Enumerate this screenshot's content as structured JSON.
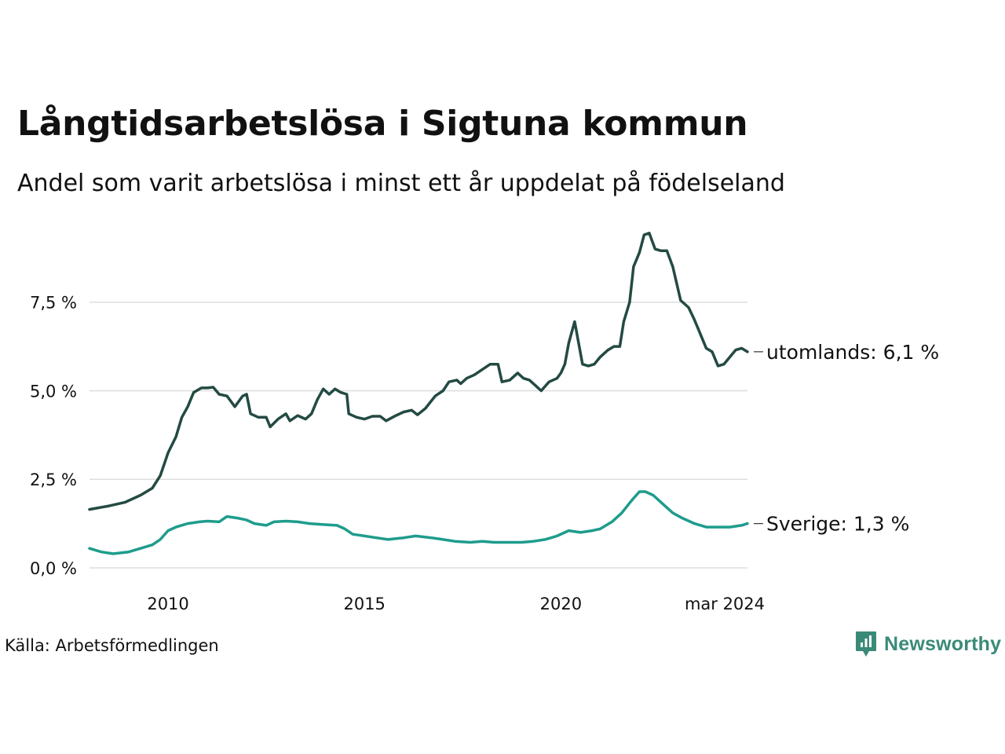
{
  "title": "Långtidsarbetslösa i Sigtuna kommun",
  "subtitle": "Andel som varit arbetslösa i minst ett år uppdelat på födelseland",
  "source": "Källa: Arbetsförmedlingen",
  "brand": {
    "name": "Newsworthy",
    "icon": "newsworthy-logo-icon",
    "color": "#3a8a78"
  },
  "chart_data": {
    "type": "line",
    "title": "Långtidsarbetslösa i Sigtuna kommun",
    "xlabel": "",
    "ylabel": "",
    "ylim": [
      0,
      9.6
    ],
    "grid": true,
    "yticks": [
      0,
      2.5,
      5,
      7.5
    ],
    "ytick_labels": [
      "0,0 %",
      "2,5 %",
      "5,0 %",
      "7,5 %"
    ],
    "xticks": [
      2010,
      2015,
      2020,
      2024.17
    ],
    "xtick_labels": [
      "2010",
      "2015",
      "2020",
      "mar 2024"
    ],
    "series": [
      {
        "name": "utomlands",
        "end_label": "utomlands: 6,1 %",
        "color": "#234a43",
        "points": [
          [
            2008.0,
            1.65
          ],
          [
            2008.5,
            1.75
          ],
          [
            2008.9,
            1.85
          ],
          [
            2009.3,
            2.05
          ],
          [
            2009.6,
            2.25
          ],
          [
            2009.8,
            2.6
          ],
          [
            2010.0,
            3.25
          ],
          [
            2010.2,
            3.7
          ],
          [
            2010.35,
            4.25
          ],
          [
            2010.5,
            4.55
          ],
          [
            2010.65,
            4.95
          ],
          [
            2010.85,
            5.08
          ],
          [
            2011.0,
            5.08
          ],
          [
            2011.15,
            5.1
          ],
          [
            2011.3,
            4.9
          ],
          [
            2011.5,
            4.85
          ],
          [
            2011.7,
            4.55
          ],
          [
            2011.9,
            4.85
          ],
          [
            2012.0,
            4.9
          ],
          [
            2012.1,
            4.35
          ],
          [
            2012.3,
            4.25
          ],
          [
            2012.5,
            4.25
          ],
          [
            2012.6,
            3.98
          ],
          [
            2012.8,
            4.2
          ],
          [
            2013.0,
            4.35
          ],
          [
            2013.1,
            4.15
          ],
          [
            2013.3,
            4.3
          ],
          [
            2013.5,
            4.2
          ],
          [
            2013.65,
            4.35
          ],
          [
            2013.8,
            4.75
          ],
          [
            2013.95,
            5.05
          ],
          [
            2014.1,
            4.9
          ],
          [
            2014.25,
            5.05
          ],
          [
            2014.4,
            4.95
          ],
          [
            2014.55,
            4.9
          ],
          [
            2014.6,
            4.35
          ],
          [
            2014.8,
            4.25
          ],
          [
            2015.0,
            4.2
          ],
          [
            2015.2,
            4.28
          ],
          [
            2015.4,
            4.28
          ],
          [
            2015.55,
            4.15
          ],
          [
            2015.8,
            4.3
          ],
          [
            2016.0,
            4.4
          ],
          [
            2016.2,
            4.45
          ],
          [
            2016.35,
            4.32
          ],
          [
            2016.55,
            4.5
          ],
          [
            2016.8,
            4.85
          ],
          [
            2017.0,
            5.0
          ],
          [
            2017.15,
            5.25
          ],
          [
            2017.35,
            5.3
          ],
          [
            2017.45,
            5.2
          ],
          [
            2017.6,
            5.35
          ],
          [
            2017.8,
            5.45
          ],
          [
            2018.0,
            5.6
          ],
          [
            2018.2,
            5.75
          ],
          [
            2018.4,
            5.75
          ],
          [
            2018.5,
            5.25
          ],
          [
            2018.7,
            5.3
          ],
          [
            2018.9,
            5.5
          ],
          [
            2019.05,
            5.35
          ],
          [
            2019.2,
            5.3
          ],
          [
            2019.35,
            5.15
          ],
          [
            2019.5,
            5.0
          ],
          [
            2019.7,
            5.25
          ],
          [
            2019.9,
            5.35
          ],
          [
            2020.0,
            5.5
          ],
          [
            2020.1,
            5.75
          ],
          [
            2020.2,
            6.35
          ],
          [
            2020.35,
            6.95
          ],
          [
            2020.45,
            6.35
          ],
          [
            2020.55,
            5.75
          ],
          [
            2020.7,
            5.7
          ],
          [
            2020.85,
            5.75
          ],
          [
            2021.0,
            5.95
          ],
          [
            2021.2,
            6.15
          ],
          [
            2021.35,
            6.25
          ],
          [
            2021.5,
            6.25
          ],
          [
            2021.6,
            6.95
          ],
          [
            2021.75,
            7.5
          ],
          [
            2021.85,
            8.5
          ],
          [
            2022.0,
            8.9
          ],
          [
            2022.12,
            9.4
          ],
          [
            2022.25,
            9.45
          ],
          [
            2022.4,
            9.0
          ],
          [
            2022.55,
            8.95
          ],
          [
            2022.7,
            8.95
          ],
          [
            2022.85,
            8.5
          ],
          [
            2023.05,
            7.55
          ],
          [
            2023.25,
            7.35
          ],
          [
            2023.4,
            7.0
          ],
          [
            2023.55,
            6.6
          ],
          [
            2023.7,
            6.2
          ],
          [
            2023.85,
            6.1
          ],
          [
            2024.0,
            5.7
          ],
          [
            2024.15,
            5.75
          ],
          [
            2024.3,
            5.95
          ],
          [
            2024.45,
            6.15
          ],
          [
            2024.6,
            6.2
          ],
          [
            2024.75,
            6.1
          ]
        ]
      },
      {
        "name": "Sverige",
        "end_label": "Sverige: 1,3 %",
        "color": "#1e9c8c",
        "points": [
          [
            2008.0,
            0.55
          ],
          [
            2008.3,
            0.45
          ],
          [
            2008.6,
            0.4
          ],
          [
            2009.0,
            0.45
          ],
          [
            2009.3,
            0.55
          ],
          [
            2009.6,
            0.65
          ],
          [
            2009.8,
            0.8
          ],
          [
            2010.0,
            1.05
          ],
          [
            2010.2,
            1.15
          ],
          [
            2010.5,
            1.25
          ],
          [
            2010.8,
            1.3
          ],
          [
            2011.0,
            1.32
          ],
          [
            2011.3,
            1.3
          ],
          [
            2011.5,
            1.45
          ],
          [
            2011.8,
            1.4
          ],
          [
            2012.0,
            1.35
          ],
          [
            2012.2,
            1.25
          ],
          [
            2012.5,
            1.2
          ],
          [
            2012.7,
            1.3
          ],
          [
            2013.0,
            1.32
          ],
          [
            2013.3,
            1.3
          ],
          [
            2013.6,
            1.25
          ],
          [
            2014.0,
            1.22
          ],
          [
            2014.3,
            1.2
          ],
          [
            2014.5,
            1.1
          ],
          [
            2014.7,
            0.95
          ],
          [
            2015.0,
            0.9
          ],
          [
            2015.3,
            0.85
          ],
          [
            2015.6,
            0.8
          ],
          [
            2016.0,
            0.85
          ],
          [
            2016.3,
            0.9
          ],
          [
            2016.7,
            0.85
          ],
          [
            2017.0,
            0.8
          ],
          [
            2017.3,
            0.75
          ],
          [
            2017.7,
            0.72
          ],
          [
            2018.0,
            0.75
          ],
          [
            2018.3,
            0.72
          ],
          [
            2018.7,
            0.72
          ],
          [
            2019.0,
            0.72
          ],
          [
            2019.3,
            0.75
          ],
          [
            2019.6,
            0.8
          ],
          [
            2019.9,
            0.9
          ],
          [
            2020.2,
            1.05
          ],
          [
            2020.5,
            1.0
          ],
          [
            2020.8,
            1.05
          ],
          [
            2021.0,
            1.1
          ],
          [
            2021.3,
            1.3
          ],
          [
            2021.55,
            1.55
          ],
          [
            2021.8,
            1.9
          ],
          [
            2022.0,
            2.15
          ],
          [
            2022.15,
            2.15
          ],
          [
            2022.35,
            2.05
          ],
          [
            2022.6,
            1.8
          ],
          [
            2022.85,
            1.55
          ],
          [
            2023.1,
            1.4
          ],
          [
            2023.4,
            1.25
          ],
          [
            2023.7,
            1.15
          ],
          [
            2024.0,
            1.15
          ],
          [
            2024.3,
            1.15
          ],
          [
            2024.6,
            1.2
          ],
          [
            2024.75,
            1.25
          ]
        ]
      }
    ]
  }
}
